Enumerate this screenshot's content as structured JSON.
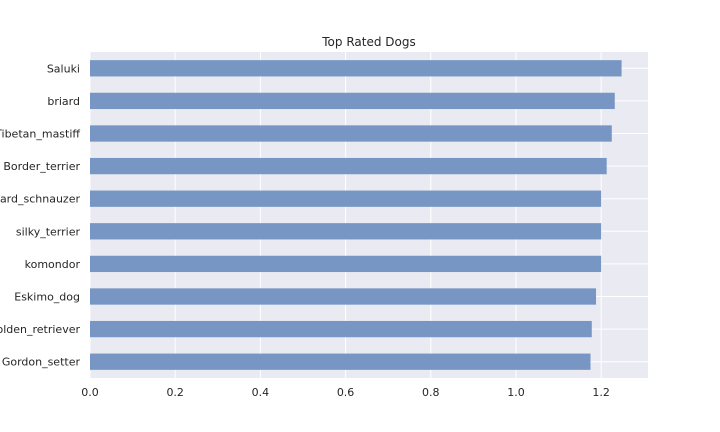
{
  "chart_data": {
    "type": "bar",
    "orientation": "horizontal",
    "title": "Top Rated Dogs",
    "xlabel": "",
    "ylabel": "",
    "categories": [
      "Gordon_setter",
      "golden_retriever",
      "Eskimo_dog",
      "komondor",
      "silky_terrier",
      "standard_schnauzer",
      "Border_terrier",
      "Tibetan_mastiff",
      "briard",
      "Saluki"
    ],
    "values": [
      1.175,
      1.178,
      1.188,
      1.2,
      1.2,
      1.2,
      1.213,
      1.225,
      1.232,
      1.248
    ],
    "xlim": [
      0,
      1.31
    ],
    "xticks": [
      "0.0",
      "0.2",
      "0.4",
      "0.6",
      "0.8",
      "1.0",
      "1.2"
    ],
    "grid": true,
    "bar_color": "#7896c3",
    "background_color": "#eaeaf2",
    "grid_color": "#ffffff"
  }
}
